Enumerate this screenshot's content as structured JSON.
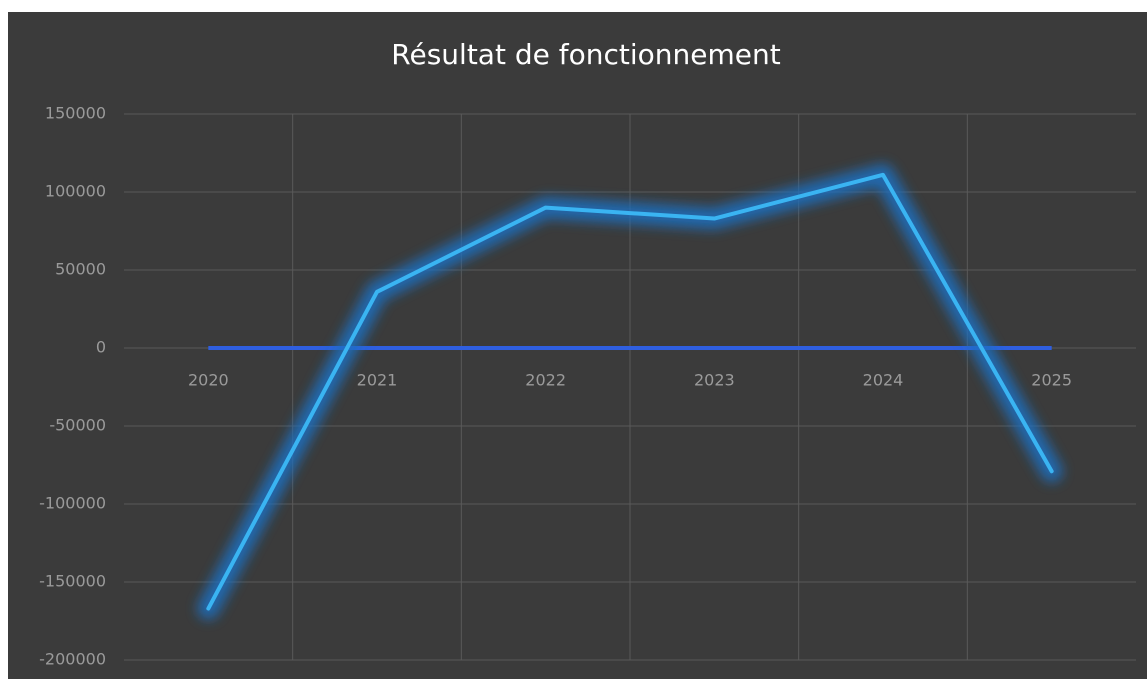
{
  "chart_data": {
    "type": "line",
    "title": "Résultat de fonctionnement",
    "categories": [
      "2020",
      "2021",
      "2022",
      "2023",
      "2024",
      "2025"
    ],
    "values": [
      -167000,
      36000,
      90000,
      83000,
      111000,
      -79000
    ],
    "color": "#3ab4f2",
    "ylim": [
      -200000,
      150000
    ],
    "yticks": [
      150000,
      100000,
      50000,
      0,
      -50000,
      -100000,
      -150000,
      -200000
    ],
    "grid": true
  }
}
